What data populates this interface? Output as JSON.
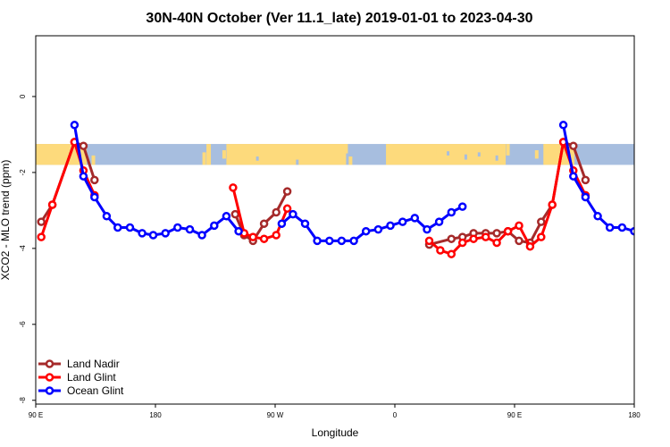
{
  "chart_data": {
    "type": "line",
    "title": "30N-40N October (Ver 11.1_late)   2019-01-01 to 2023-04-30",
    "xlabel": "Longitude",
    "ylabel": "XCO2 - MLO trend (ppm)",
    "xlim": [
      -90,
      180
    ],
    "ylim": [
      -8.1,
      1.6
    ],
    "x_ticks": [
      {
        "value": -90,
        "label": "90 E"
      },
      {
        "value": -36,
        "label": "180"
      },
      {
        "value": 18,
        "label": "90 W"
      },
      {
        "value": 72,
        "label": "0"
      },
      {
        "value": 126,
        "label": "90 E"
      },
      {
        "value": 180,
        "label": "180"
      }
    ],
    "y_ticks": [
      {
        "value": 0,
        "label": "0"
      },
      {
        "value": -2,
        "label": "-2"
      },
      {
        "value": -4,
        "label": "-4"
      },
      {
        "value": -6,
        "label": "-6"
      },
      {
        "value": -8,
        "label": "-8"
      }
    ],
    "map_band": {
      "ymin": -1.8,
      "ymax": -1.25,
      "ocean_color": "#a7bedf",
      "land_color": "#fdda7c"
    },
    "legend": {
      "position": "bottom-left"
    },
    "series": [
      {
        "name": "Land Nadir",
        "color": "#a52a2a",
        "segments": [
          [
            [
              -87.5,
              -3.3
            ],
            [
              -82.5,
              -2.85
            ],
            [
              -72.5,
              -1.2
            ],
            [
              -68.5,
              -1.3
            ],
            [
              -63.5,
              -2.2
            ]
          ],
          [
            [
              0,
              -3.1
            ],
            [
              4,
              -3.65
            ],
            [
              8,
              -3.8
            ],
            [
              13,
              -3.35
            ],
            [
              18.5,
              -3.05
            ],
            [
              23.5,
              -2.5
            ]
          ],
          [
            [
              87.5,
              -3.9
            ],
            [
              97.5,
              -3.75
            ],
            [
              102.5,
              -3.7
            ],
            [
              107.5,
              -3.6
            ],
            [
              113,
              -3.6
            ],
            [
              118,
              -3.6
            ],
            [
              123,
              -3.55
            ],
            [
              128,
              -3.8
            ],
            [
              133,
              -3.85
            ],
            [
              138,
              -3.3
            ],
            [
              143,
              -2.85
            ],
            [
              148,
              -1.2
            ],
            [
              152.5,
              -1.3
            ],
            [
              158,
              -2.2
            ]
          ]
        ]
      },
      {
        "name": "Land Glint",
        "color": "#ff0000",
        "segments": [
          [
            [
              -87.5,
              -3.7
            ],
            [
              -82.5,
              -2.85
            ],
            [
              -72.5,
              -1.2
            ],
            [
              -68.5,
              -1.95
            ],
            [
              -63.5,
              -2.6
            ]
          ],
          [
            [
              -1,
              -2.4
            ],
            [
              4,
              -3.6
            ],
            [
              8,
              -3.7
            ],
            [
              13,
              -3.75
            ],
            [
              18.5,
              -3.65
            ],
            [
              23.5,
              -2.95
            ]
          ],
          [
            [
              87.5,
              -3.8
            ],
            [
              92.5,
              -4.05
            ],
            [
              97.5,
              -4.15
            ],
            [
              102.5,
              -3.85
            ],
            [
              107.5,
              -3.75
            ],
            [
              113,
              -3.7
            ],
            [
              118,
              -3.85
            ],
            [
              123,
              -3.55
            ],
            [
              128,
              -3.4
            ],
            [
              133,
              -3.95
            ],
            [
              138,
              -3.7
            ],
            [
              143,
              -2.85
            ],
            [
              148,
              -1.2
            ],
            [
              152.5,
              -1.95
            ],
            [
              158,
              -2.6
            ]
          ]
        ]
      },
      {
        "name": "Ocean Glint",
        "color": "#0000ff",
        "segments": [
          [
            [
              -72.5,
              -0.75
            ],
            [
              -68.5,
              -2.1
            ],
            [
              -63.5,
              -2.65
            ],
            [
              -58,
              -3.15
            ],
            [
              -53,
              -3.45
            ],
            [
              -47.5,
              -3.45
            ],
            [
              -42,
              -3.6
            ],
            [
              -37,
              -3.65
            ],
            [
              -31.5,
              -3.6
            ],
            [
              -26,
              -3.45
            ],
            [
              -20.5,
              -3.5
            ],
            [
              -15,
              -3.65
            ],
            [
              -9.5,
              -3.4
            ],
            [
              -4,
              -3.15
            ],
            [
              1.5,
              -3.55
            ]
          ],
          [
            [
              21,
              -3.35
            ],
            [
              26,
              -3.1
            ],
            [
              31.5,
              -3.35
            ],
            [
              37,
              -3.8
            ],
            [
              42.5,
              -3.8
            ],
            [
              48,
              -3.8
            ],
            [
              53.5,
              -3.8
            ],
            [
              59,
              -3.55
            ],
            [
              64.5,
              -3.5
            ],
            [
              70,
              -3.4
            ],
            [
              75.5,
              -3.3
            ],
            [
              81,
              -3.2
            ],
            [
              86.5,
              -3.5
            ],
            [
              92,
              -3.3
            ],
            [
              97.5,
              -3.05
            ],
            [
              102.5,
              -2.9
            ]
          ],
          [
            [
              148,
              -0.75
            ],
            [
              152.5,
              -2.1
            ],
            [
              158,
              -2.65
            ],
            [
              163.5,
              -3.15
            ],
            [
              169,
              -3.45
            ],
            [
              174.5,
              -3.45
            ],
            [
              180,
              -3.55
            ]
          ]
        ]
      }
    ]
  }
}
